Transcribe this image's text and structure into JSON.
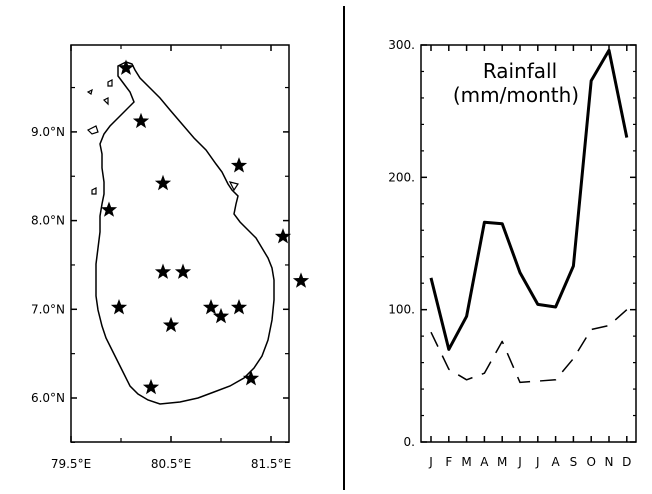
{
  "chart_data": [
    {
      "type": "scatter",
      "title": "",
      "marker": "star",
      "x_ticks": [
        "79.5°E",
        "80.5°E",
        "81.5°E"
      ],
      "y_ticks": [
        "6.0°N",
        "7.0°N",
        "8.0°N",
        "9.0°N"
      ],
      "xlim": [
        79.5,
        82.0
      ],
      "ylim": [
        5.5,
        10.0
      ],
      "stations": [
        {
          "lon": 80.05,
          "lat": 9.72
        },
        {
          "lon": 80.2,
          "lat": 9.12
        },
        {
          "lon": 81.18,
          "lat": 8.62
        },
        {
          "lon": 80.42,
          "lat": 8.42
        },
        {
          "lon": 79.88,
          "lat": 8.12
        },
        {
          "lon": 81.62,
          "lat": 7.82
        },
        {
          "lon": 80.42,
          "lat": 7.42
        },
        {
          "lon": 80.62,
          "lat": 7.42
        },
        {
          "lon": 81.8,
          "lat": 7.32
        },
        {
          "lon": 79.98,
          "lat": 7.02
        },
        {
          "lon": 80.9,
          "lat": 7.02
        },
        {
          "lon": 81.18,
          "lat": 7.02
        },
        {
          "lon": 81.0,
          "lat": 6.92
        },
        {
          "lon": 80.5,
          "lat": 6.82
        },
        {
          "lon": 81.3,
          "lat": 6.22
        },
        {
          "lon": 80.3,
          "lat": 6.12
        }
      ]
    },
    {
      "type": "line",
      "title": "Rainfall\n(mm/month)",
      "title_lines": [
        "Rainfall",
        "(mm/month)"
      ],
      "categories": [
        "J",
        "F",
        "M",
        "A",
        "M",
        "J",
        "J",
        "A",
        "S",
        "O",
        "N",
        "D"
      ],
      "y_ticks": [
        "0.",
        "100.",
        "200.",
        "300."
      ],
      "ylim": [
        0,
        300
      ],
      "series": [
        {
          "style": "solid",
          "values": [
            124,
            70,
            95,
            166,
            165,
            128,
            104,
            102,
            133,
            273,
            296,
            230
          ]
        },
        {
          "style": "dashed",
          "values": [
            83,
            55,
            47,
            52,
            76,
            45,
            46,
            47,
            63,
            85,
            88,
            100
          ]
        }
      ]
    }
  ]
}
